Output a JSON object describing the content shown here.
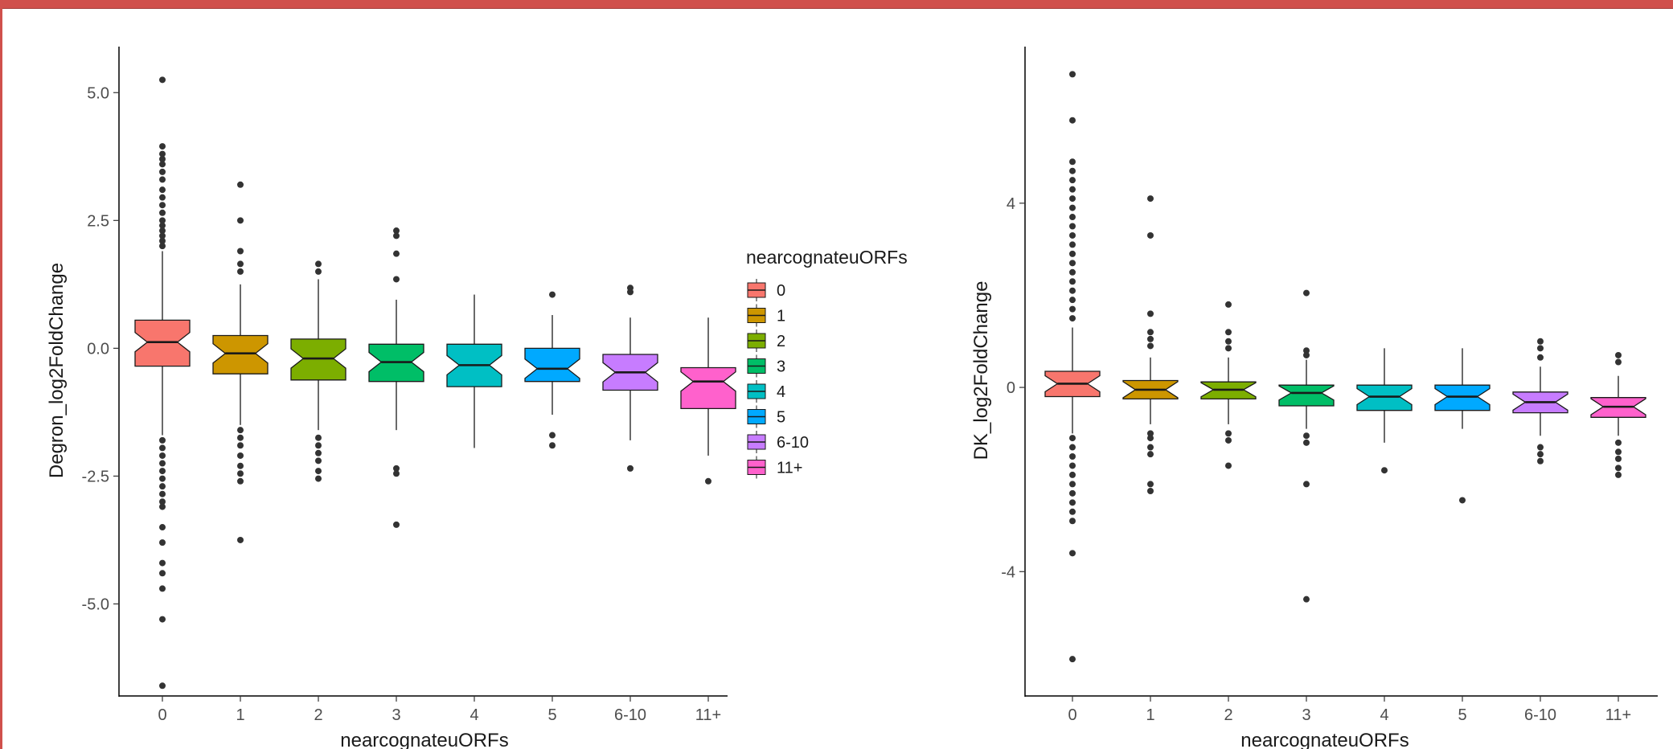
{
  "chart_data": [
    {
      "type": "boxplot",
      "title": "",
      "xlabel": "nearcognateuORFs",
      "ylabel": "Degron_log2FoldChange",
      "ylim": [
        -6.8,
        5.9
      ],
      "yticks": [
        5.0,
        2.5,
        0.0,
        -2.5,
        -5.0
      ],
      "ytick_labels": [
        "5.0",
        "2.5",
        "0.0",
        "-2.5",
        "-5.0"
      ],
      "notched": true,
      "grid": false,
      "categories": [
        "0",
        "1",
        "2",
        "3",
        "4",
        "5",
        "6-10",
        "11+"
      ],
      "boxes": [
        {
          "category": "0",
          "whisker_low": -1.7,
          "q1": -0.35,
          "median": 0.12,
          "q3": 0.55,
          "whisker_high": 1.9,
          "outliers": [
            5.25,
            3.95,
            3.8,
            3.7,
            3.6,
            3.45,
            3.3,
            3.1,
            2.95,
            2.8,
            2.65,
            2.5,
            2.4,
            2.3,
            2.2,
            2.1,
            2.0,
            -1.8,
            -1.95,
            -2.1,
            -2.25,
            -2.4,
            -2.55,
            -2.7,
            -2.85,
            -3.0,
            -3.1,
            -3.5,
            -3.8,
            -4.2,
            -4.4,
            -4.7,
            -5.3,
            -6.6
          ]
        },
        {
          "category": "1",
          "whisker_low": -1.5,
          "q1": -0.5,
          "median": -0.1,
          "q3": 0.25,
          "whisker_high": 1.25,
          "outliers": [
            3.2,
            2.5,
            1.9,
            1.65,
            1.5,
            -1.6,
            -1.75,
            -1.9,
            -2.1,
            -2.3,
            -2.45,
            -2.6,
            -3.75
          ]
        },
        {
          "category": "2",
          "whisker_low": -1.6,
          "q1": -0.62,
          "median": -0.2,
          "q3": 0.18,
          "whisker_high": 1.35,
          "outliers": [
            1.65,
            1.5,
            -1.75,
            -1.9,
            -2.05,
            -2.2,
            -2.4,
            -2.55
          ]
        },
        {
          "category": "3",
          "whisker_low": -1.6,
          "q1": -0.65,
          "median": -0.27,
          "q3": 0.08,
          "whisker_high": 0.95,
          "outliers": [
            2.3,
            2.2,
            1.85,
            1.35,
            -2.35,
            -2.45,
            -3.45
          ]
        },
        {
          "category": "4",
          "whisker_low": -1.95,
          "q1": -0.75,
          "median": -0.33,
          "q3": 0.08,
          "whisker_high": 1.05,
          "outliers": []
        },
        {
          "category": "5",
          "whisker_low": -1.3,
          "q1": -0.65,
          "median": -0.4,
          "q3": 0.0,
          "whisker_high": 0.65,
          "outliers": [
            1.05,
            -1.7,
            -1.9
          ]
        },
        {
          "category": "6-10",
          "whisker_low": -1.8,
          "q1": -0.82,
          "median": -0.47,
          "q3": -0.12,
          "whisker_high": 0.6,
          "outliers": [
            1.18,
            1.1,
            -2.35
          ]
        },
        {
          "category": "11+",
          "whisker_low": -2.1,
          "q1": -1.18,
          "median": -0.65,
          "q3": -0.38,
          "whisker_high": 0.6,
          "outliers": [
            -2.6
          ]
        }
      ]
    },
    {
      "type": "boxplot",
      "title": "",
      "xlabel": "nearcognateuORFs",
      "ylabel": "DK_log2FoldChange",
      "ylim": [
        -6.7,
        7.4
      ],
      "yticks": [
        4,
        0,
        -4
      ],
      "ytick_labels": [
        "4",
        "0",
        "-4"
      ],
      "notched": true,
      "grid": false,
      "categories": [
        "0",
        "1",
        "2",
        "3",
        "4",
        "5",
        "6-10",
        "11+"
      ],
      "boxes": [
        {
          "category": "0",
          "whisker_low": -1.0,
          "q1": -0.2,
          "median": 0.08,
          "q3": 0.35,
          "whisker_high": 1.3,
          "outliers": [
            6.8,
            5.8,
            4.9,
            4.7,
            4.5,
            4.3,
            4.1,
            3.9,
            3.7,
            3.5,
            3.3,
            3.1,
            2.9,
            2.7,
            2.5,
            2.3,
            2.1,
            1.9,
            1.7,
            1.5,
            -1.1,
            -1.3,
            -1.5,
            -1.7,
            -1.9,
            -2.1,
            -2.3,
            -2.5,
            -2.7,
            -2.9,
            -3.6,
            -5.9
          ]
        },
        {
          "category": "1",
          "whisker_low": -0.8,
          "q1": -0.25,
          "median": -0.05,
          "q3": 0.15,
          "whisker_high": 0.65,
          "outliers": [
            4.1,
            3.3,
            1.6,
            1.2,
            1.05,
            0.9,
            -1.0,
            -1.1,
            -1.3,
            -1.45,
            -2.1,
            -2.25
          ]
        },
        {
          "category": "2",
          "whisker_low": -0.8,
          "q1": -0.25,
          "median": -0.05,
          "q3": 0.12,
          "whisker_high": 0.65,
          "outliers": [
            1.8,
            1.2,
            1.0,
            0.85,
            -1.0,
            -1.15,
            -1.7
          ]
        },
        {
          "category": "3",
          "whisker_low": -0.9,
          "q1": -0.4,
          "median": -0.12,
          "q3": 0.05,
          "whisker_high": 0.6,
          "outliers": [
            2.05,
            0.8,
            0.7,
            -1.05,
            -1.2,
            -2.1,
            -4.6
          ]
        },
        {
          "category": "4",
          "whisker_low": -1.2,
          "q1": -0.5,
          "median": -0.2,
          "q3": 0.05,
          "whisker_high": 0.85,
          "outliers": [
            -1.8
          ]
        },
        {
          "category": "5",
          "whisker_low": -0.9,
          "q1": -0.5,
          "median": -0.2,
          "q3": 0.05,
          "whisker_high": 0.85,
          "outliers": [
            -2.45
          ]
        },
        {
          "category": "6-10",
          "whisker_low": -1.05,
          "q1": -0.55,
          "median": -0.32,
          "q3": -0.1,
          "whisker_high": 0.45,
          "outliers": [
            1.0,
            0.85,
            0.65,
            -1.3,
            -1.45,
            -1.6
          ]
        },
        {
          "category": "11+",
          "whisker_low": -1.05,
          "q1": -0.65,
          "median": -0.42,
          "q3": -0.22,
          "whisker_high": 0.25,
          "outliers": [
            0.7,
            0.55,
            -1.2,
            -1.4,
            -1.55,
            -1.75,
            -1.9
          ]
        }
      ]
    }
  ],
  "legend": {
    "title": "nearcognateuORFs",
    "entries": [
      {
        "label": "0",
        "color": "#F8766D"
      },
      {
        "label": "1",
        "color": "#CD9600"
      },
      {
        "label": "2",
        "color": "#7CAE00"
      },
      {
        "label": "3",
        "color": "#00BE67"
      },
      {
        "label": "4",
        "color": "#00BFC4"
      },
      {
        "label": "5",
        "color": "#00A9FF"
      },
      {
        "label": "6-10",
        "color": "#C77CFF"
      },
      {
        "label": "11+",
        "color": "#FF61CC"
      }
    ]
  },
  "colors": {
    "header_bar": "#d0504c",
    "outline": "#1a1a1a",
    "outlier": "#333333"
  }
}
